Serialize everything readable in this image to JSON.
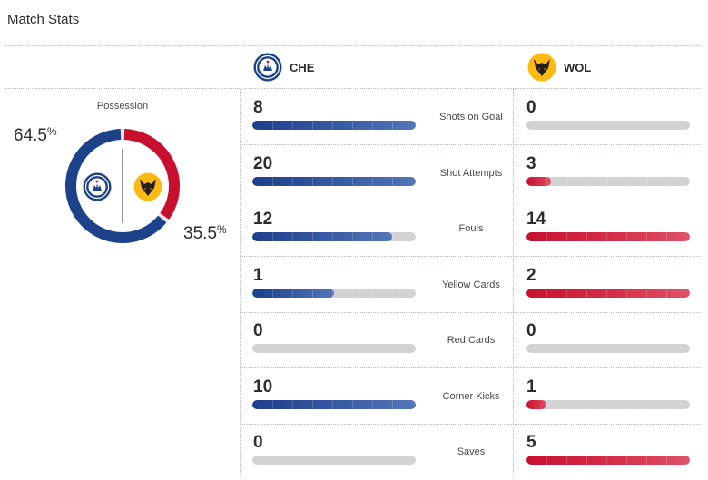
{
  "title": "Match Stats",
  "home": {
    "abbr": "CHE",
    "color": "#1d428a",
    "crest_icon": "chelsea-crest-icon"
  },
  "away": {
    "abbr": "WOL",
    "color": "#c8102e",
    "crest_icon": "wolves-crest-icon"
  },
  "possession": {
    "label": "Possession",
    "home_value": 64.5,
    "away_value": 35.5,
    "home_text": "64.5",
    "away_text": "35.5",
    "unit": "%"
  },
  "stats": [
    {
      "label": "Shots on Goal",
      "home": "8",
      "away": "0",
      "home_fill": 1.0,
      "away_fill": 0.0
    },
    {
      "label": "Shot Attempts",
      "home": "20",
      "away": "3",
      "home_fill": 1.0,
      "away_fill": 0.15
    },
    {
      "label": "Fouls",
      "home": "12",
      "away": "14",
      "home_fill": 0.857,
      "away_fill": 1.0
    },
    {
      "label": "Yellow Cards",
      "home": "1",
      "away": "2",
      "home_fill": 0.5,
      "away_fill": 1.0
    },
    {
      "label": "Red Cards",
      "home": "0",
      "away": "0",
      "home_fill": 0.0,
      "away_fill": 0.0
    },
    {
      "label": "Corner Kicks",
      "home": "10",
      "away": "1",
      "home_fill": 1.0,
      "away_fill": 0.1
    },
    {
      "label": "Saves",
      "home": "0",
      "away": "5",
      "home_fill": 0.0,
      "away_fill": 1.0
    }
  ]
}
